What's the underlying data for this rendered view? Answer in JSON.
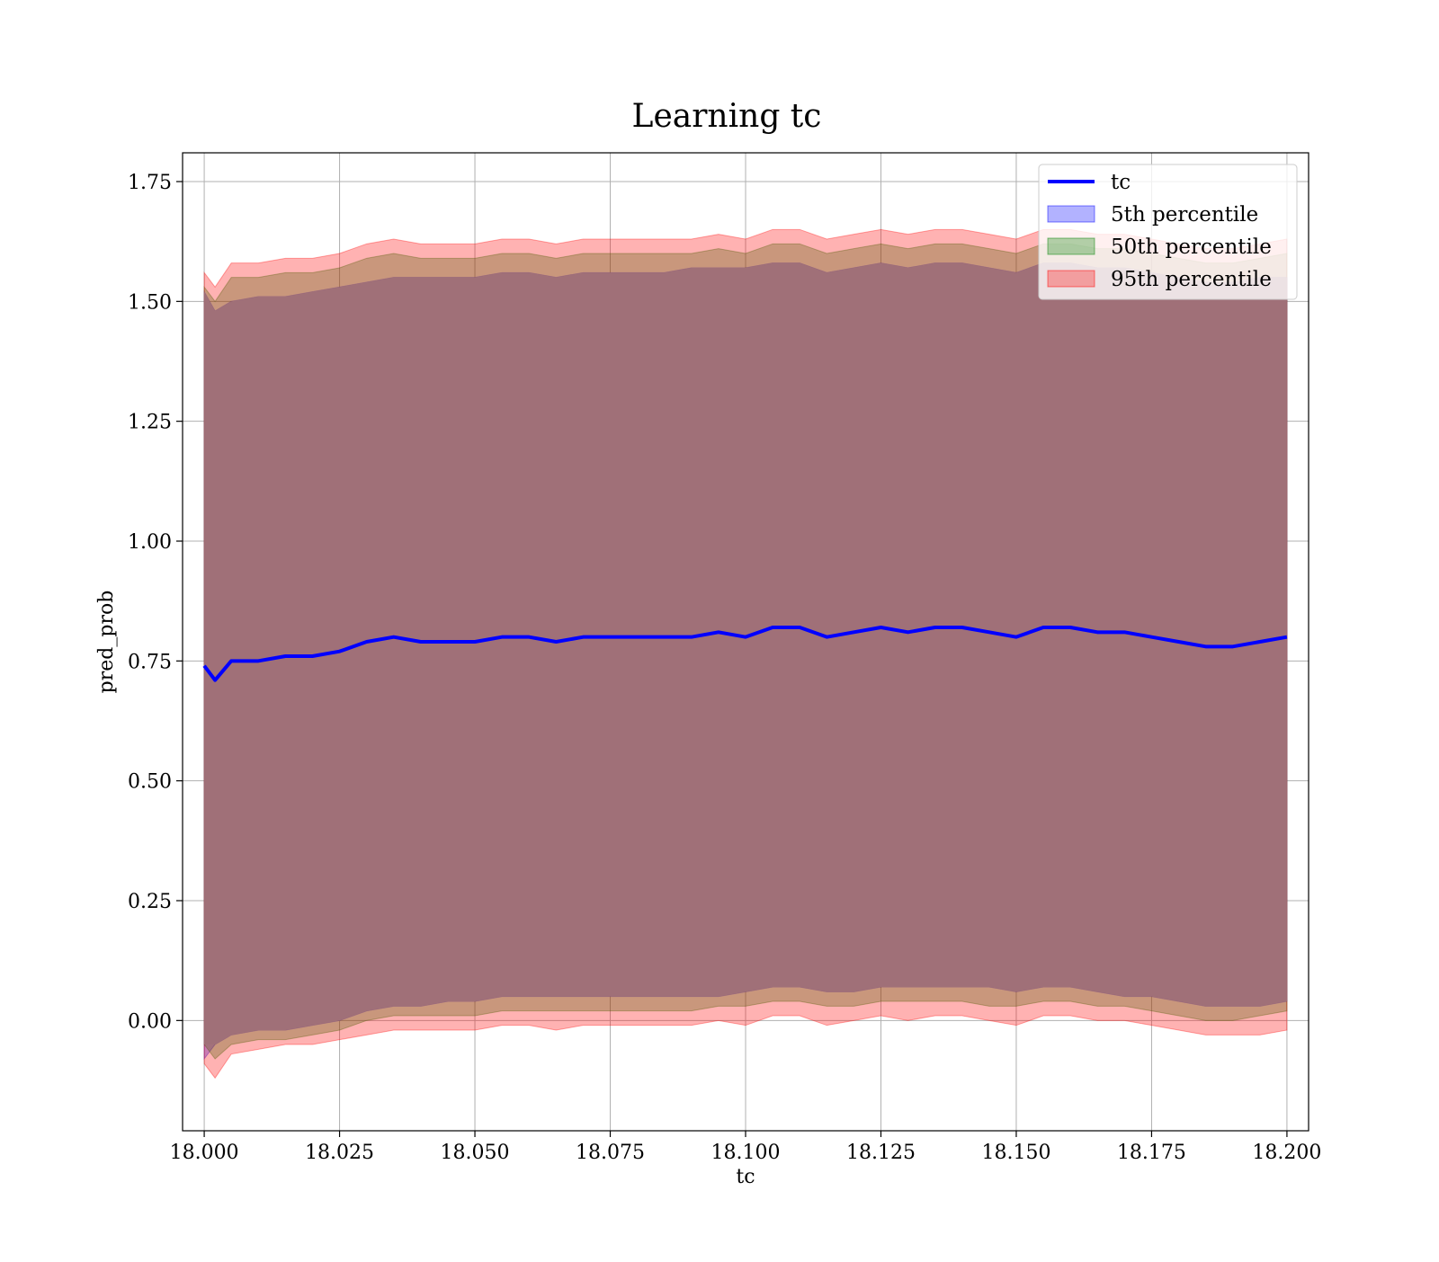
{
  "chart_data": {
    "type": "area",
    "title": "Learning tc",
    "xlabel": "tc",
    "ylabel": "pred_prob",
    "xlim": [
      17.996,
      18.204
    ],
    "ylim": [
      -0.23,
      1.81
    ],
    "x_ticks": [
      18.0,
      18.025,
      18.05,
      18.075,
      18.1,
      18.125,
      18.15,
      18.175,
      18.2
    ],
    "x_tick_labels": [
      "18.000",
      "18.025",
      "18.050",
      "18.075",
      "18.100",
      "18.125",
      "18.150",
      "18.175",
      "18.200"
    ],
    "y_ticks": [
      0.0,
      0.25,
      0.5,
      0.75,
      1.0,
      1.25,
      1.5,
      1.75
    ],
    "y_tick_labels": [
      "0.00",
      "0.25",
      "0.50",
      "0.75",
      "1.00",
      "1.25",
      "1.50",
      "1.75"
    ],
    "grid": true,
    "legend_position": "top-right",
    "x": [
      18.0,
      18.002,
      18.005,
      18.01,
      18.015,
      18.02,
      18.025,
      18.03,
      18.035,
      18.04,
      18.045,
      18.05,
      18.055,
      18.06,
      18.065,
      18.07,
      18.075,
      18.08,
      18.085,
      18.09,
      18.095,
      18.1,
      18.105,
      18.11,
      18.115,
      18.12,
      18.125,
      18.13,
      18.135,
      18.14,
      18.145,
      18.15,
      18.155,
      18.16,
      18.165,
      18.17,
      18.175,
      18.18,
      18.185,
      18.19,
      18.195,
      18.2
    ],
    "series": [
      {
        "name": "tc",
        "kind": "line",
        "color": "#0000ff",
        "values": [
          0.74,
          0.71,
          0.75,
          0.75,
          0.76,
          0.76,
          0.77,
          0.79,
          0.8,
          0.79,
          0.79,
          0.79,
          0.8,
          0.8,
          0.79,
          0.8,
          0.8,
          0.8,
          0.8,
          0.8,
          0.81,
          0.8,
          0.82,
          0.82,
          0.8,
          0.81,
          0.82,
          0.81,
          0.82,
          0.82,
          0.81,
          0.8,
          0.82,
          0.82,
          0.81,
          0.81,
          0.8,
          0.79,
          0.78,
          0.78,
          0.79,
          0.8
        ]
      },
      {
        "name": "5th percentile",
        "kind": "band",
        "color": "#0000ff",
        "lower": [
          -0.08,
          -0.05,
          -0.03,
          -0.02,
          -0.02,
          -0.01,
          0.0,
          0.02,
          0.03,
          0.03,
          0.04,
          0.04,
          0.05,
          0.05,
          0.05,
          0.05,
          0.05,
          0.05,
          0.05,
          0.05,
          0.05,
          0.06,
          0.07,
          0.07,
          0.06,
          0.06,
          0.07,
          0.07,
          0.07,
          0.07,
          0.07,
          0.06,
          0.07,
          0.07,
          0.06,
          0.05,
          0.05,
          0.04,
          0.03,
          0.03,
          0.03,
          0.04
        ],
        "upper": [
          1.52,
          1.48,
          1.5,
          1.51,
          1.51,
          1.52,
          1.53,
          1.54,
          1.55,
          1.55,
          1.55,
          1.55,
          1.56,
          1.56,
          1.55,
          1.56,
          1.56,
          1.56,
          1.56,
          1.57,
          1.57,
          1.57,
          1.58,
          1.58,
          1.56,
          1.57,
          1.58,
          1.57,
          1.58,
          1.58,
          1.57,
          1.56,
          1.58,
          1.58,
          1.57,
          1.57,
          1.56,
          1.55,
          1.54,
          1.54,
          1.55,
          1.55
        ]
      },
      {
        "name": "50th percentile",
        "kind": "band",
        "color": "#008000",
        "lower": [
          -0.05,
          -0.08,
          -0.05,
          -0.04,
          -0.04,
          -0.03,
          -0.02,
          0.0,
          0.01,
          0.01,
          0.01,
          0.01,
          0.02,
          0.02,
          0.02,
          0.02,
          0.02,
          0.02,
          0.02,
          0.02,
          0.03,
          0.03,
          0.04,
          0.04,
          0.03,
          0.03,
          0.04,
          0.04,
          0.04,
          0.04,
          0.03,
          0.03,
          0.04,
          0.04,
          0.03,
          0.03,
          0.02,
          0.01,
          0.0,
          0.0,
          0.01,
          0.02
        ],
        "upper": [
          1.53,
          1.5,
          1.55,
          1.55,
          1.56,
          1.56,
          1.57,
          1.59,
          1.6,
          1.59,
          1.59,
          1.59,
          1.6,
          1.6,
          1.59,
          1.6,
          1.6,
          1.6,
          1.6,
          1.6,
          1.61,
          1.6,
          1.62,
          1.62,
          1.6,
          1.61,
          1.62,
          1.61,
          1.62,
          1.62,
          1.61,
          1.6,
          1.62,
          1.62,
          1.61,
          1.61,
          1.6,
          1.59,
          1.58,
          1.58,
          1.59,
          1.6
        ]
      },
      {
        "name": "95th percentile",
        "kind": "band",
        "color": "#ff0000",
        "lower": [
          -0.09,
          -0.12,
          -0.07,
          -0.06,
          -0.05,
          -0.05,
          -0.04,
          -0.03,
          -0.02,
          -0.02,
          -0.02,
          -0.02,
          -0.01,
          -0.01,
          -0.02,
          -0.01,
          -0.01,
          -0.01,
          -0.01,
          -0.01,
          0.0,
          -0.01,
          0.01,
          0.01,
          -0.01,
          0.0,
          0.01,
          0.0,
          0.01,
          0.01,
          0.0,
          -0.01,
          0.01,
          0.01,
          0.0,
          0.0,
          -0.01,
          -0.02,
          -0.03,
          -0.03,
          -0.03,
          -0.02
        ],
        "upper": [
          1.56,
          1.53,
          1.58,
          1.58,
          1.59,
          1.59,
          1.6,
          1.62,
          1.63,
          1.62,
          1.62,
          1.62,
          1.63,
          1.63,
          1.62,
          1.63,
          1.63,
          1.63,
          1.63,
          1.63,
          1.64,
          1.63,
          1.65,
          1.65,
          1.63,
          1.64,
          1.65,
          1.64,
          1.65,
          1.65,
          1.64,
          1.63,
          1.65,
          1.65,
          1.64,
          1.64,
          1.63,
          1.62,
          1.61,
          1.61,
          1.62,
          1.63
        ]
      }
    ],
    "fill_alpha": 0.3,
    "combined_band_color": "#a07078"
  }
}
